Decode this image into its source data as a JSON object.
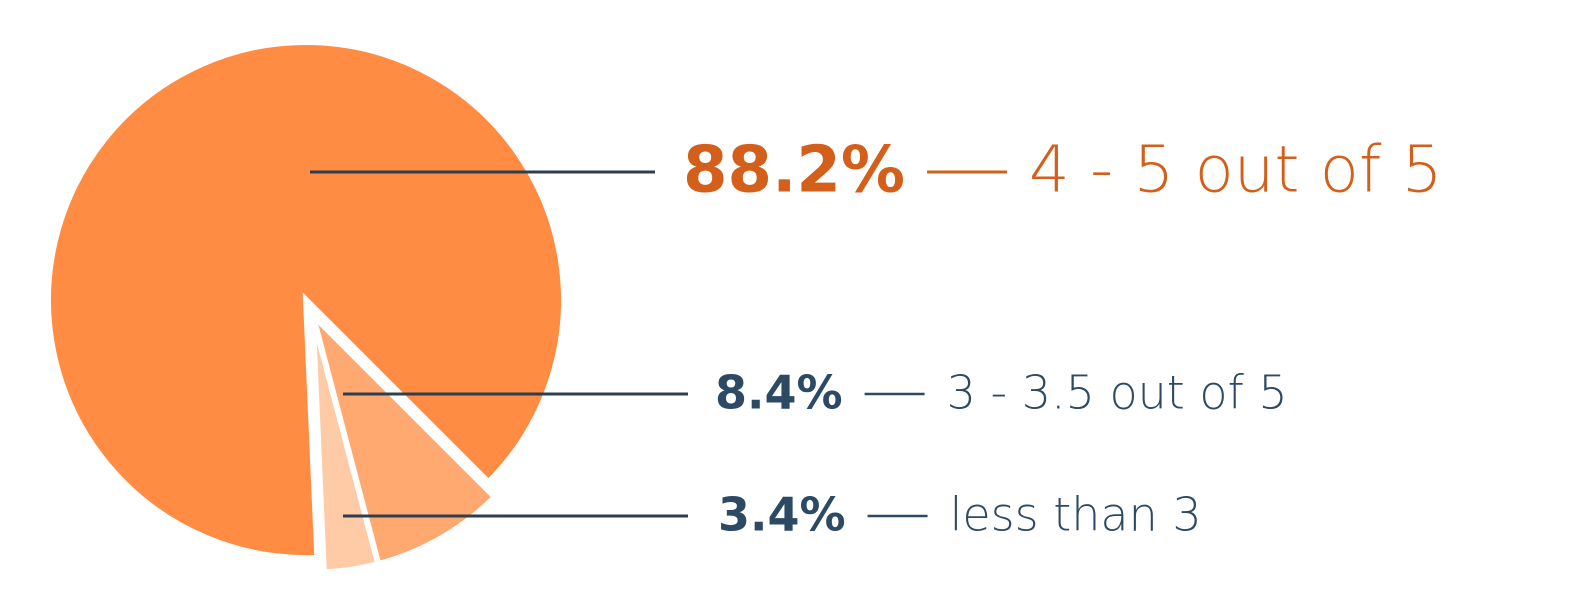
{
  "chart_data": {
    "type": "pie",
    "categories": [
      "4 - 5 out of 5",
      "3 - 3.5 out of 5",
      "less than 3"
    ],
    "values": [
      88.2,
      8.4,
      3.4
    ],
    "value_labels": [
      "88.2%",
      "8.4%",
      "3.4%"
    ],
    "colors": [
      "#ff8c42",
      "#ffa970",
      "#ffcba6"
    ],
    "label_colors": [
      "#d35f1a",
      "#2c4a63",
      "#2c4a63"
    ]
  }
}
